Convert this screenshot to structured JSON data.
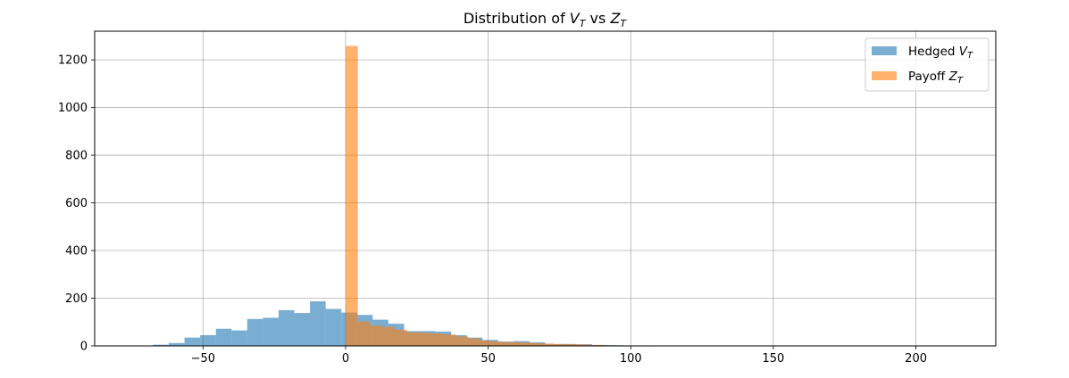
{
  "chart_data": {
    "type": "bar",
    "title": {
      "prefix": "Distribution of ",
      "v": "V",
      "v_sub": "T",
      "mid": " vs ",
      "z": "Z",
      "z_sub": "T"
    },
    "xlabel": "",
    "ylabel": "",
    "xlim": [
      -88,
      228
    ],
    "ylim": [
      0,
      1320
    ],
    "xticks": [
      -50,
      0,
      50,
      100,
      150,
      200
    ],
    "xtick_labels": [
      "−50",
      "0",
      "50",
      "100",
      "150",
      "200"
    ],
    "yticks": [
      0,
      200,
      400,
      600,
      800,
      1000,
      1200
    ],
    "ytick_labels": [
      "0",
      "200",
      "400",
      "600",
      "800",
      "1000",
      "1200"
    ],
    "grid": true,
    "legend_position": "top-right",
    "colors": {
      "hedged": "#1f77b4",
      "payoff": "#ff7f0e",
      "grid": "#b0b0b0"
    },
    "series": [
      {
        "name": {
          "prefix": "Hedged ",
          "var": "V",
          "sub": "T"
        },
        "bin_edges": [
          -67.5,
          -62,
          -56.5,
          -51,
          -45.5,
          -40,
          -34.5,
          -29,
          -23.5,
          -18,
          -12.5,
          -7,
          -1.5,
          4,
          9.5,
          15,
          20.5,
          26,
          31.5,
          37,
          42.5,
          48,
          53.5,
          59,
          64.5,
          70,
          75.5,
          81,
          86.5,
          92,
          97.5,
          103,
          108.5,
          114,
          119.5,
          125,
          130.5,
          136,
          141.5,
          147,
          152.5,
          158,
          163.5,
          169,
          174.5,
          180,
          185.5,
          191,
          196.5,
          202,
          207.5,
          213
        ],
        "counts": [
          5,
          12,
          35,
          45,
          72,
          65,
          113,
          118,
          150,
          138,
          187,
          155,
          140,
          130,
          110,
          93,
          62,
          62,
          60,
          45,
          35,
          25,
          18,
          20,
          15,
          8,
          8,
          7,
          4,
          3,
          2,
          2,
          1,
          1,
          1,
          1,
          1,
          1,
          0,
          0,
          0,
          0,
          0,
          0,
          0,
          0,
          0,
          0,
          0,
          0,
          1
        ]
      },
      {
        "name": {
          "prefix": "Payoff ",
          "var": "Z",
          "sub": "T"
        },
        "bin_edges": [
          0,
          4.3,
          8.6,
          12.9,
          17.2,
          21.5,
          25.8,
          30.1,
          34.4,
          38.7,
          43,
          47.3,
          51.6,
          55.9,
          60.2,
          64.5,
          68.8,
          73.1,
          77.4,
          81.7,
          86,
          90.3,
          94.6,
          98.9,
          103.2
        ],
        "counts": [
          1258,
          103,
          85,
          80,
          68,
          57,
          55,
          52,
          48,
          40,
          32,
          22,
          18,
          16,
          15,
          12,
          10,
          8,
          7,
          6,
          4,
          2,
          1,
          1
        ]
      }
    ]
  }
}
